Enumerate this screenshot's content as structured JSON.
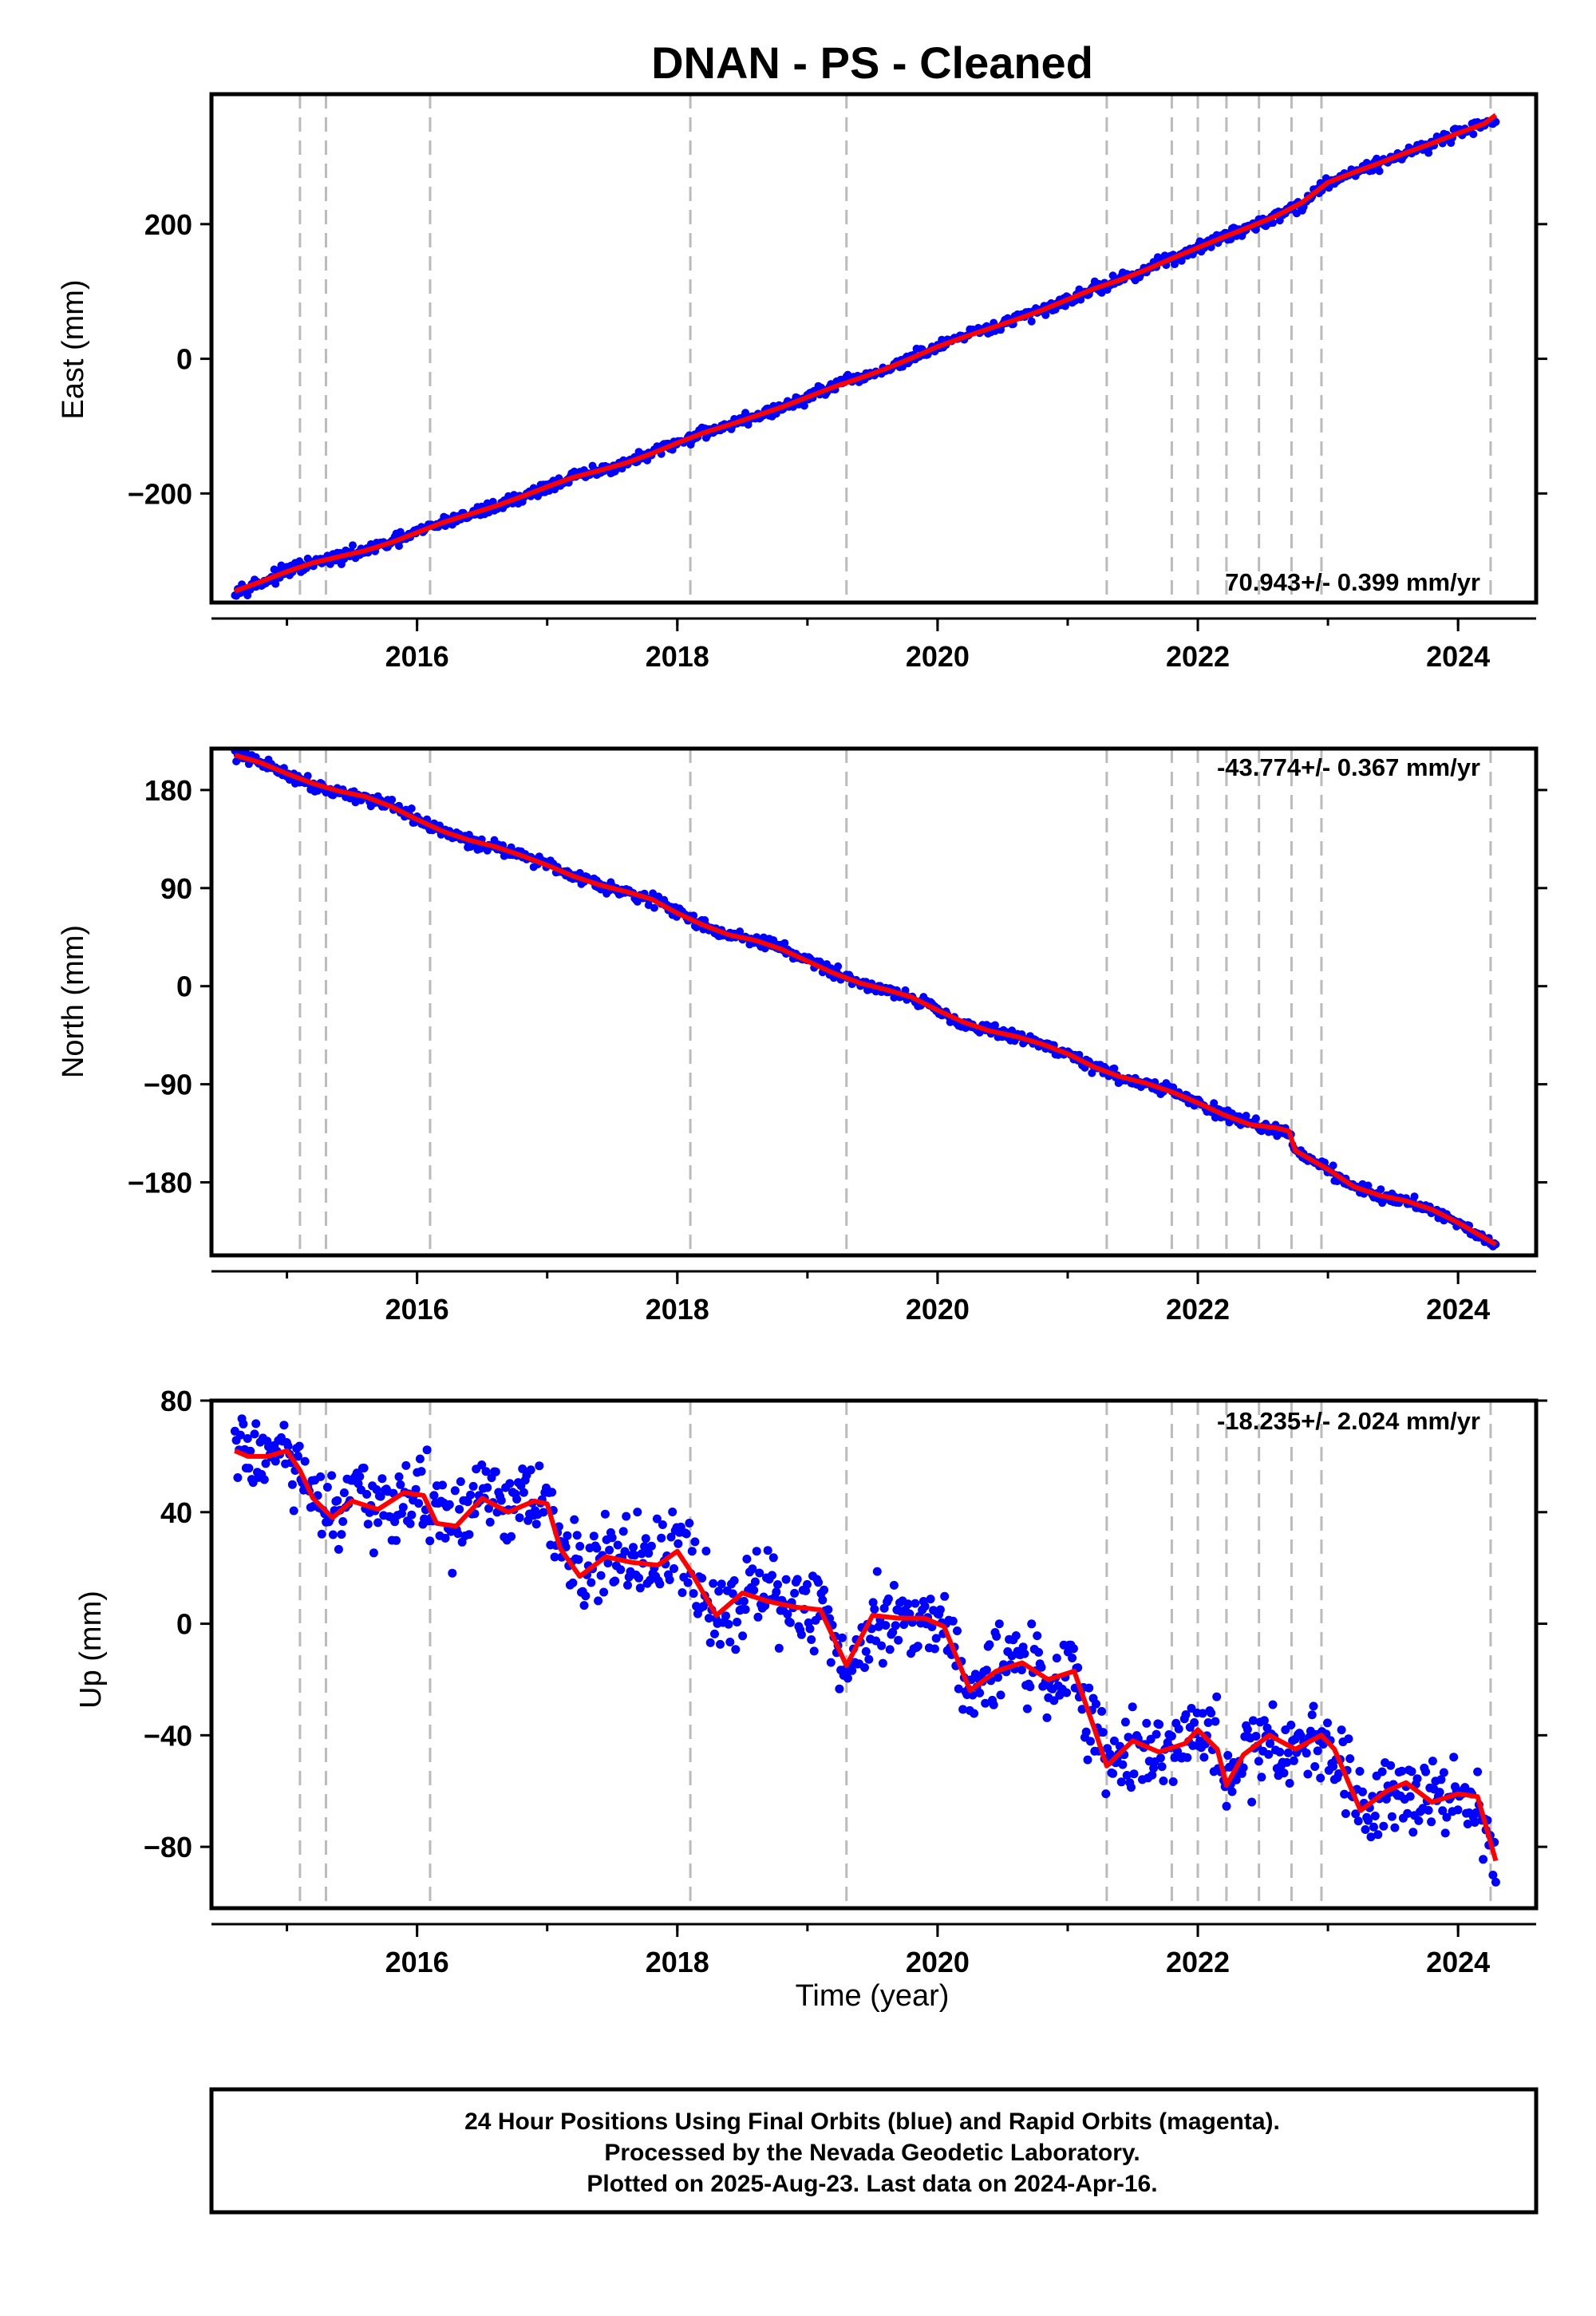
{
  "chart_data": {
    "type": "scatter",
    "title": "DNAN  - PS - Cleaned",
    "xlabel": "Time (year)",
    "x_ticks": [
      2016,
      2018,
      2020,
      2022,
      2024
    ],
    "xlim": [
      2014.42,
      2024.6
    ],
    "event_lines": [
      2015.1,
      2015.3,
      2016.1,
      2018.1,
      2019.3,
      2021.3,
      2021.8,
      2022.0,
      2022.22,
      2022.47,
      2022.72,
      2022.95,
      2024.25
    ],
    "colors": {
      "points": "#0000ff",
      "fit": "#ff0000",
      "event_line": "#bbbbbb"
    },
    "panels": [
      {
        "name": "east",
        "ylabel": "East (mm)",
        "ylim": [
          -362,
          393
        ],
        "y_ticks": [
          -200,
          0,
          200
        ],
        "rate_label": "70.943+/- 0.399 mm/yr",
        "rate_position": "bottom-right",
        "points_x": [
          2014.6,
          2014.8,
          2015.0,
          2015.2,
          2015.4,
          2015.6,
          2015.8,
          2016.0,
          2016.2,
          2016.4,
          2016.6,
          2016.8,
          2017.0,
          2017.2,
          2017.4,
          2017.6,
          2017.8,
          2018.0,
          2018.2,
          2018.4,
          2018.6,
          2018.8,
          2019.0,
          2019.2,
          2019.4,
          2019.6,
          2019.8,
          2020.0,
          2020.2,
          2020.4,
          2020.6,
          2020.8,
          2021.0,
          2021.2,
          2021.4,
          2021.6,
          2021.8,
          2022.0,
          2022.2,
          2022.4,
          2022.6,
          2022.8,
          2023.0,
          2023.2,
          2023.4,
          2023.6,
          2023.8,
          2024.0,
          2024.2,
          2024.29
        ],
        "points_y": [
          -343,
          -333,
          -315,
          -304,
          -295,
          -285,
          -273,
          -258,
          -243,
          -232,
          -219,
          -206,
          -190,
          -176,
          -167,
          -155,
          -142,
          -125,
          -109,
          -98,
          -86,
          -73,
          -57,
          -41,
          -29,
          -16,
          1,
          17,
          32,
          45,
          58,
          72,
          88,
          104,
          117,
          133,
          149,
          164,
          181,
          196,
          212,
          230,
          263,
          277,
          291,
          306,
          320,
          335,
          350,
          357
        ],
        "fit_y": [
          -345,
          -331,
          -316,
          -303,
          -294,
          -285,
          -273,
          -258,
          -243,
          -231,
          -219,
          -205,
          -190,
          -176,
          -166,
          -155,
          -141,
          -125,
          -110,
          -98,
          -85,
          -72,
          -57,
          -42,
          -29,
          -15,
          1,
          18,
          32,
          45,
          58,
          72,
          88,
          104,
          117,
          132,
          149,
          165,
          181,
          196,
          212,
          232,
          262,
          277,
          291,
          306,
          320,
          335,
          349,
          362
        ]
      },
      {
        "name": "north",
        "ylabel": "North (mm)",
        "ylim": [
          -247,
          218
        ],
        "y_ticks": [
          -180,
          -90,
          0,
          90,
          180
        ],
        "rate_label": "-43.774+/- 0.367 mm/yr",
        "rate_position": "top-right",
        "points_x": [
          2014.6,
          2014.8,
          2015.0,
          2015.2,
          2015.4,
          2015.6,
          2015.8,
          2016.0,
          2016.2,
          2016.4,
          2016.6,
          2016.8,
          2017.0,
          2017.2,
          2017.4,
          2017.6,
          2017.8,
          2018.0,
          2018.2,
          2018.4,
          2018.6,
          2018.8,
          2019.0,
          2019.2,
          2019.4,
          2019.6,
          2019.8,
          2020.0,
          2020.2,
          2020.4,
          2020.6,
          2020.8,
          2021.0,
          2021.2,
          2021.4,
          2021.6,
          2021.8,
          2022.0,
          2022.2,
          2022.4,
          2022.6,
          2022.7,
          2022.75,
          2023.0,
          2023.2,
          2023.4,
          2023.6,
          2023.8,
          2024.0,
          2024.29
        ],
        "points_y": [
          212,
          205,
          195,
          185,
          178,
          173,
          165,
          153,
          142,
          133,
          128,
          121,
          112,
          102,
          94,
          87,
          80,
          68,
          57,
          46,
          42,
          35,
          24,
          13,
          3,
          -3,
          -10,
          -22,
          -34,
          -41,
          -46,
          -53,
          -62,
          -74,
          -83,
          -90,
          -97,
          -107,
          -118,
          -127,
          -131,
          -134,
          -150,
          -168,
          -184,
          -192,
          -197,
          -205,
          -217,
          -237
        ],
        "fit_y": [
          212,
          205,
          195,
          186,
          179,
          174,
          165,
          153,
          142,
          134,
          128,
          120,
          111,
          101,
          93,
          87,
          80,
          67,
          56,
          47,
          42,
          34,
          23,
          12,
          3,
          -3,
          -10,
          -22,
          -33,
          -41,
          -46,
          -53,
          -62,
          -74,
          -83,
          -89,
          -97,
          -107,
          -118,
          -127,
          -130,
          -133,
          -151,
          -168,
          -184,
          -192,
          -197,
          -205,
          -217,
          -237
        ]
      },
      {
        "name": "up",
        "ylabel": "Up (mm)",
        "ylim": [
          -102,
          80
        ],
        "y_ticks": [
          -80,
          -40,
          0,
          40,
          80
        ],
        "rate_label": "-18.235+/- 2.024 mm/yr",
        "rate_position": "top-right",
        "points_x": [
          2014.6,
          2014.7,
          2014.85,
          2015.0,
          2015.1,
          2015.2,
          2015.35,
          2015.5,
          2015.7,
          2015.9,
          2016.05,
          2016.15,
          2016.3,
          2016.5,
          2016.7,
          2016.9,
          2017.0,
          2017.1,
          2017.25,
          2017.45,
          2017.65,
          2017.85,
          2018.0,
          2018.1,
          2018.3,
          2018.5,
          2018.7,
          2018.9,
          2019.1,
          2019.3,
          2019.5,
          2019.7,
          2019.9,
          2020.05,
          2020.25,
          2020.45,
          2020.65,
          2020.85,
          2021.05,
          2021.2,
          2021.3,
          2021.5,
          2021.7,
          2021.9,
          2022.0,
          2022.15,
          2022.22,
          2022.35,
          2022.55,
          2022.75,
          2022.95,
          2023.05,
          2023.25,
          2023.45,
          2023.6,
          2023.8,
          2024.0,
          2024.15,
          2024.29
        ],
        "points_y": [
          64,
          60,
          62,
          60,
          52,
          44,
          37,
          45,
          40,
          46,
          47,
          38,
          36,
          46,
          40,
          44,
          42,
          28,
          17,
          25,
          23,
          20,
          27,
          20,
          4,
          12,
          9,
          7,
          6,
          -18,
          4,
          1,
          3,
          0,
          -22,
          -17,
          -12,
          -21,
          -16,
          -38,
          -49,
          -43,
          -47,
          -42,
          -38,
          -44,
          -58,
          -48,
          -41,
          -45,
          -39,
          -47,
          -65,
          -59,
          -56,
          -63,
          -60,
          -62,
          -87
        ],
        "fit_y": [
          62,
          60,
          60,
          62,
          55,
          45,
          38,
          44,
          41,
          47,
          46,
          36,
          35,
          45,
          40,
          44,
          43,
          27,
          17,
          24,
          22,
          21,
          26,
          19,
          3,
          11,
          8,
          6,
          5,
          -15,
          3,
          2,
          2,
          -1,
          -24,
          -17,
          -14,
          -20,
          -17,
          -37,
          -51,
          -42,
          -46,
          -43,
          -38,
          -45,
          -58,
          -47,
          -40,
          -45,
          -40,
          -45,
          -67,
          -60,
          -57,
          -64,
          -61,
          -62,
          -85
        ]
      }
    ],
    "note_lines": [
      "24 Hour Positions Using Final Orbits (blue) and Rapid Orbits (magenta).",
      "Processed by the Nevada Geodetic Laboratory.",
      "Plotted on 2025-Aug-23. Last data on 2024-Apr-16."
    ]
  }
}
